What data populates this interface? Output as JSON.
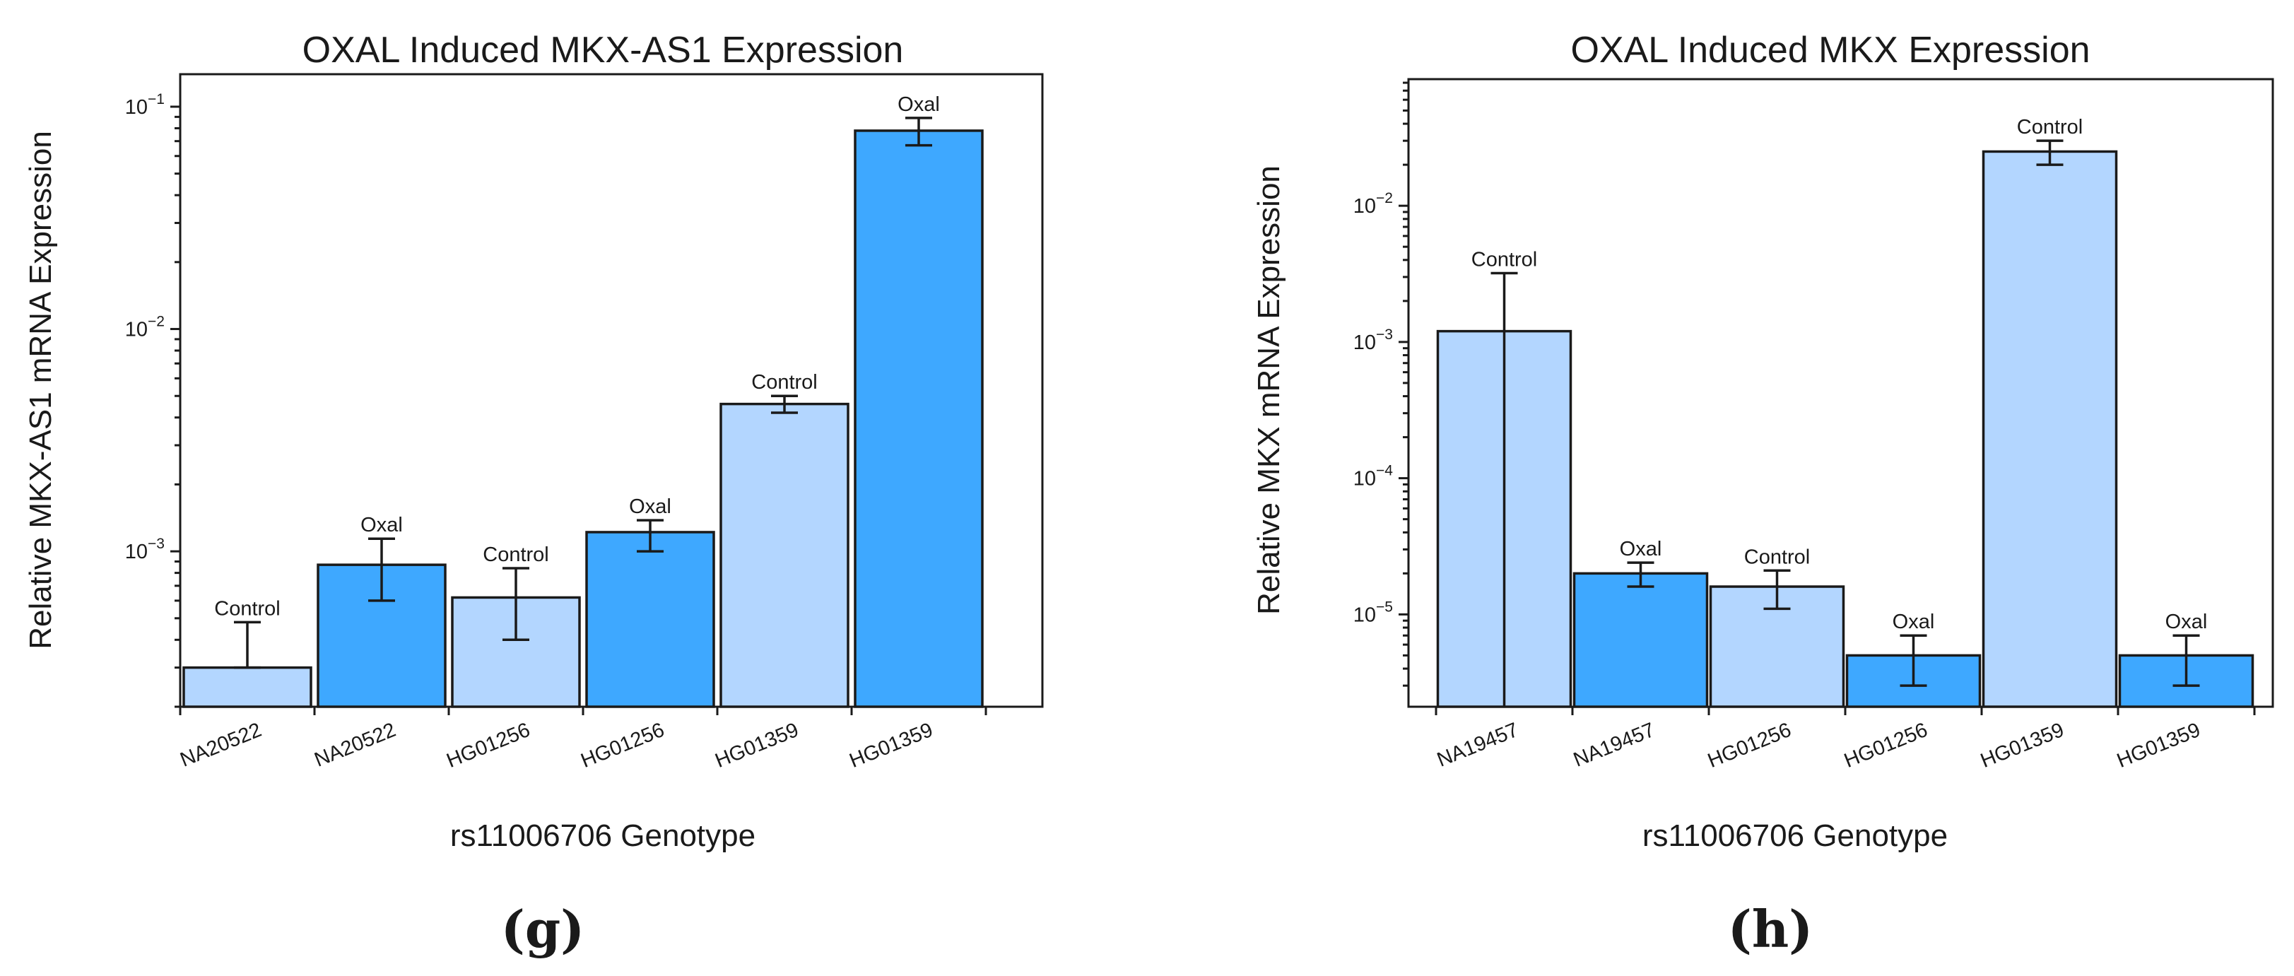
{
  "colors": {
    "control": "#b3d6ff",
    "oxal": "#3ea8ff",
    "ink": "#1a1a1a"
  },
  "chart_data": [
    {
      "type": "bar",
      "panel_label": "(g)",
      "title": "OXAL Induced MKX-AS1 Expression",
      "xlabel": "rs11006706 Genotype",
      "ylabel": "Relative MKX-AS1 mRNA Expression",
      "yscale": "log",
      "ylim": [
        0.0002,
        0.14
      ],
      "yticks": [
        {
          "value": 0.001,
          "base": "10",
          "exp": "−3"
        },
        {
          "value": 0.01,
          "base": "10",
          "exp": "−2"
        },
        {
          "value": 0.1,
          "base": "10",
          "exp": "−1"
        }
      ],
      "categories": [
        "NA20522",
        "NA20522",
        "HG01256",
        "HG01256",
        "HG01359",
        "HG01359"
      ],
      "bar_labels": [
        "Control",
        "Oxal",
        "Control",
        "Oxal",
        "Control",
        "Oxal"
      ],
      "values": [
        0.0003,
        0.00087,
        0.00062,
        0.00122,
        0.0046,
        0.078
      ],
      "err_low": [
        0.0003,
        0.0006,
        0.0004,
        0.001,
        0.0042,
        0.067
      ],
      "err_high": [
        0.00048,
        0.00114,
        0.00084,
        0.00138,
        0.005,
        0.089
      ]
    },
    {
      "type": "bar",
      "panel_label": "(h)",
      "title": "OXAL Induced MKX Expression",
      "xlabel": "rs11006706 Genotype",
      "ylabel": "Relative MKX mRNA Expression",
      "yscale": "log",
      "ylim": [
        2.1e-06,
        0.085
      ],
      "yticks": [
        {
          "value": 1e-05,
          "base": "10",
          "exp": "−5"
        },
        {
          "value": 0.0001,
          "base": "10",
          "exp": "−4"
        },
        {
          "value": 0.001,
          "base": "10",
          "exp": "−3"
        },
        {
          "value": 0.01,
          "base": "10",
          "exp": "−2"
        }
      ],
      "categories": [
        "NA19457",
        "NA19457",
        "HG01256",
        "HG01256",
        "HG01359",
        "HG01359"
      ],
      "bar_labels": [
        "Control",
        "Oxal",
        "Control",
        "Oxal",
        "Control",
        "Oxal"
      ],
      "values": [
        0.0012,
        2e-05,
        1.6e-05,
        5e-06,
        0.025,
        5e-06
      ],
      "err_low": [
        2.1e-06,
        1.6e-05,
        1.1e-05,
        3e-06,
        0.02,
        3e-06
      ],
      "err_high": [
        0.0032,
        2.4e-05,
        2.1e-05,
        7e-06,
        0.03,
        7e-06
      ]
    }
  ]
}
